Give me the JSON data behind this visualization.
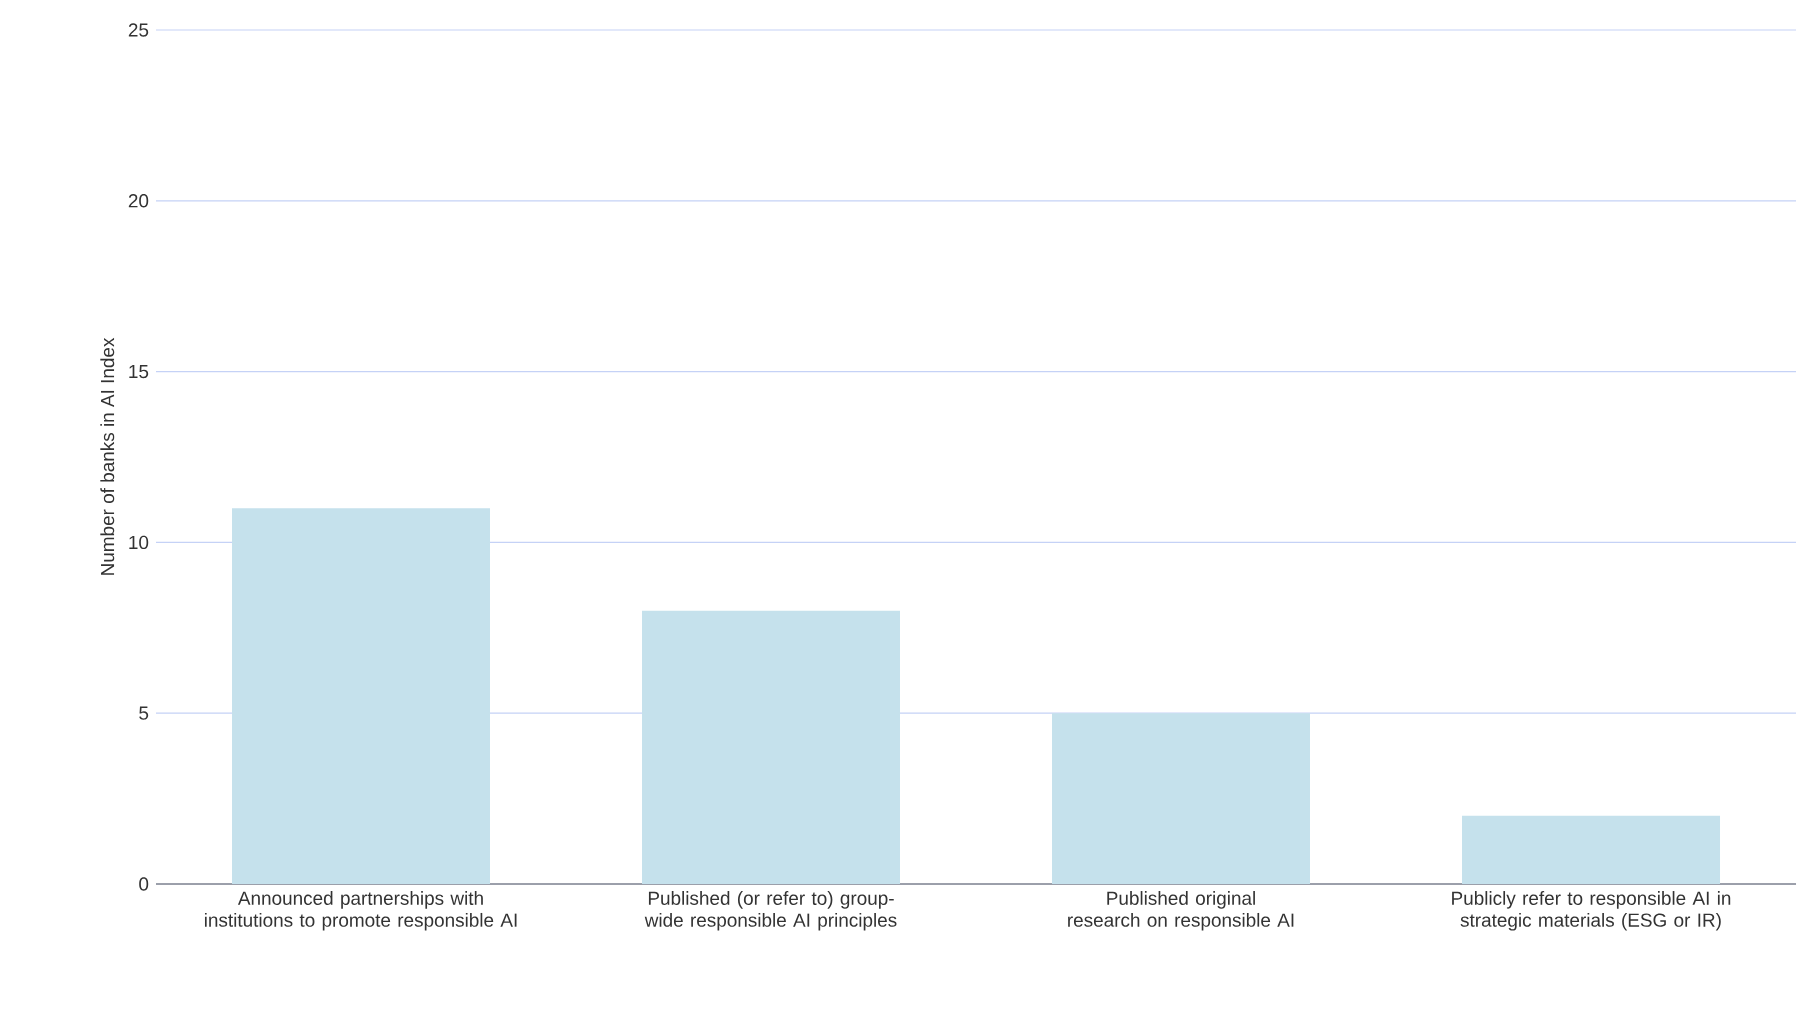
{
  "chart_data": {
    "type": "bar",
    "ylabel": "Number of banks in AI Index",
    "categories": [
      "Announced partnerships with institutions to promote responsible AI",
      "Published (or refer to) group-wide responsible AI principles",
      "Published original research on responsible AI",
      "Publicly refer to responsible AI in strategic materials (ESG or IR)"
    ],
    "values": [
      11,
      8,
      5,
      2
    ],
    "color": "#c5e1ec",
    "ylim": [
      0,
      25
    ],
    "yticks": [
      0,
      5,
      10,
      15,
      20,
      25
    ],
    "grid": "y"
  }
}
